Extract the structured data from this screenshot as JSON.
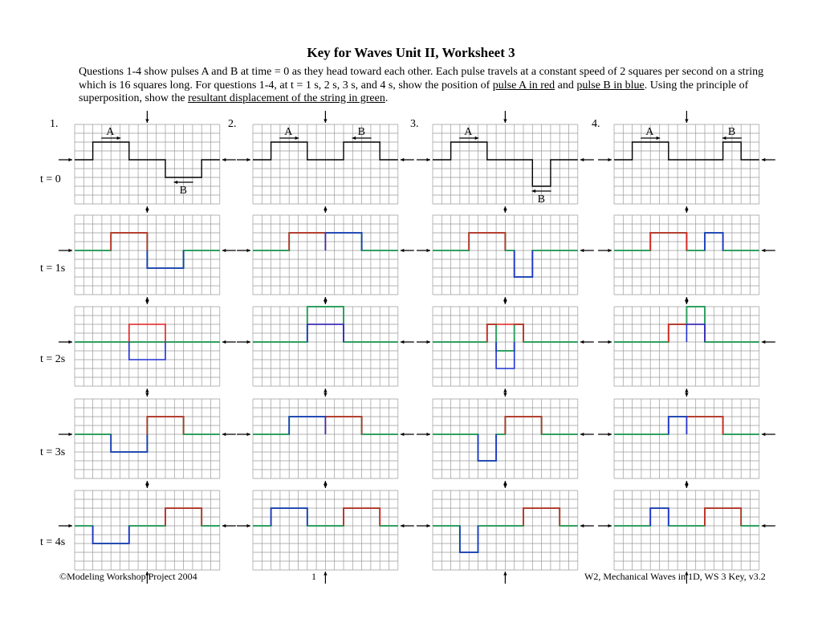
{
  "title": "Key for Waves Unit II, Worksheet 3",
  "intro": {
    "part1": "Questions 1-4 show pulses A and B at time = 0 as they head toward each other. Each pulse travels at a constant speed of 2 squares per second on a string which is 16 squares long. For questions 1-4, at t = 1 s, 2 s, 3 s, and 4 s, show  the position of ",
    "pulse_a": "pulse A in red",
    "and": " and ",
    "pulse_b": "pulse B in blue",
    "part2": ". Using the principle of superposition, show the ",
    "resultant": "resultant displacement of the string in green",
    "end": "."
  },
  "questions": [
    "1.",
    "2.",
    "3.",
    "4."
  ],
  "time_labels": [
    "t = 0",
    "t = 1s",
    "t = 2s",
    "t = 3s",
    "t = 4s"
  ],
  "pulse_labels": {
    "a": "A",
    "b": "B"
  },
  "footer": {
    "left": "©Modeling Workshop Project 2004",
    "center": "1",
    "right": "W2, Mechanical Waves in 1D, WS 3 Key, v3.2"
  },
  "colors": {
    "pulse_a": "#e02020",
    "pulse_b": "#2030d0",
    "resultant": "#30a060",
    "grid": "#9a9a9a",
    "string": "#000000"
  },
  "problems": [
    {
      "pulse_a": {
        "start": 2,
        "width": 4,
        "height": 2
      },
      "pulse_b": {
        "start": 10,
        "width": 4,
        "height": -2
      }
    },
    {
      "pulse_a": {
        "start": 2,
        "width": 4,
        "height": 2
      },
      "pulse_b": {
        "start": 10,
        "width": 4,
        "height": 2
      }
    },
    {
      "pulse_a": {
        "start": 2,
        "width": 4,
        "height": 2
      },
      "pulse_b": {
        "start": 11,
        "width": 2,
        "height": -3
      }
    },
    {
      "pulse_a": {
        "start": 2,
        "width": 4,
        "height": 2
      },
      "pulse_b": {
        "start": 12,
        "width": 2,
        "height": 2
      }
    }
  ],
  "pulse_speed": 2,
  "string_length": 16
}
